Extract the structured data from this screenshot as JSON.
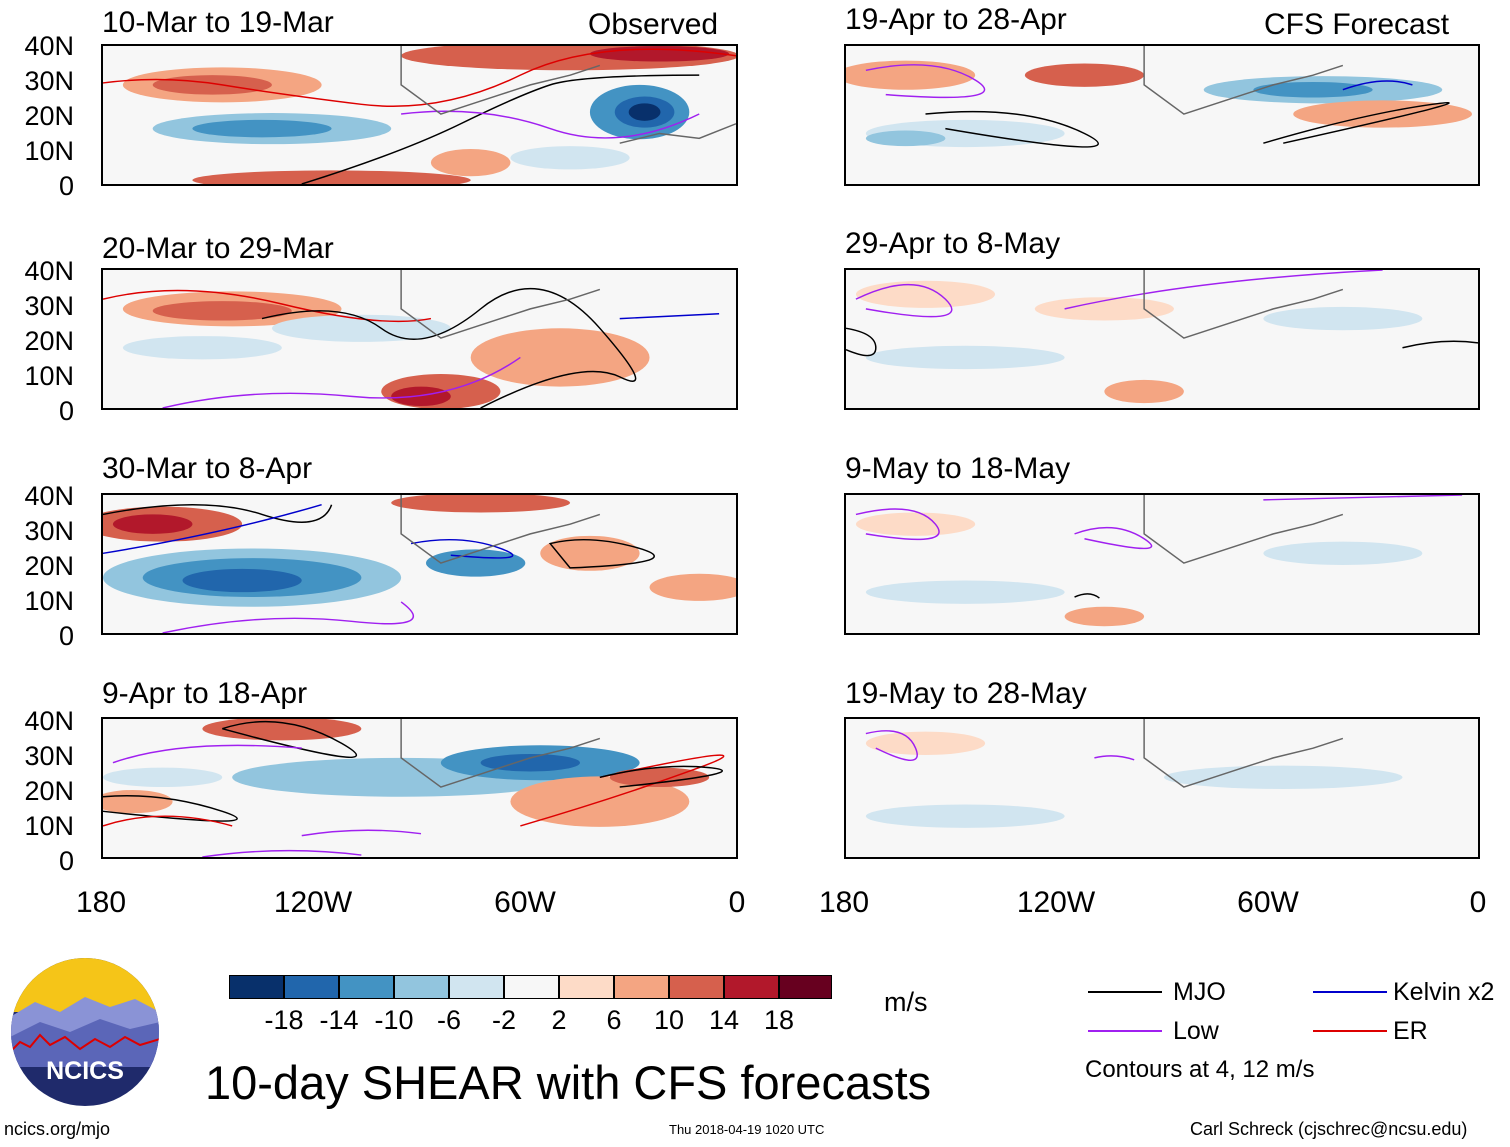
{
  "figure": {
    "title": "10-day SHEAR with CFS forecasts",
    "observed_label": "Observed",
    "forecast_label": "CFS Forecast",
    "site": "ncics.org/mjo",
    "timestamp": "Thu 2018-04-19 1020 UTC",
    "author": "Carl Schreck (cjschrec@ncsu.edu)",
    "logo_text": "NCICS"
  },
  "axes": {
    "lat_ticks": [
      "40N",
      "30N",
      "20N",
      "10N",
      "0"
    ],
    "lon_ticks": [
      "180",
      "120W",
      "60W",
      "0"
    ]
  },
  "panels": {
    "observed": [
      "10-Mar to 19-Mar",
      "20-Mar to 29-Mar",
      "30-Mar to 8-Apr",
      "9-Apr to 18-Apr"
    ],
    "forecast": [
      "19-Apr to 28-Apr",
      "29-Apr to 8-May",
      "9-May to 18-May",
      "19-May to 28-May"
    ]
  },
  "colorbar": {
    "unit": "m/s",
    "tick_labels": [
      "-18",
      "-14",
      "-10",
      "-6",
      "-2",
      "2",
      "6",
      "10",
      "14",
      "18"
    ],
    "colors": [
      "#08306b",
      "#2166ac",
      "#4393c3",
      "#92c5de",
      "#d1e5f0",
      "#f7f7f7",
      "#fddbc7",
      "#f4a582",
      "#d6604d",
      "#b2182b",
      "#67001f"
    ]
  },
  "legend": {
    "items": [
      {
        "label": "MJO",
        "color": "#000000"
      },
      {
        "label": "Kelvin x2",
        "color": "#0000cc"
      },
      {
        "label": "Low",
        "color": "#a020f0"
      },
      {
        "label": "ER",
        "color": "#dd0000"
      }
    ],
    "note": "Contours at 4, 12 m/s"
  }
}
